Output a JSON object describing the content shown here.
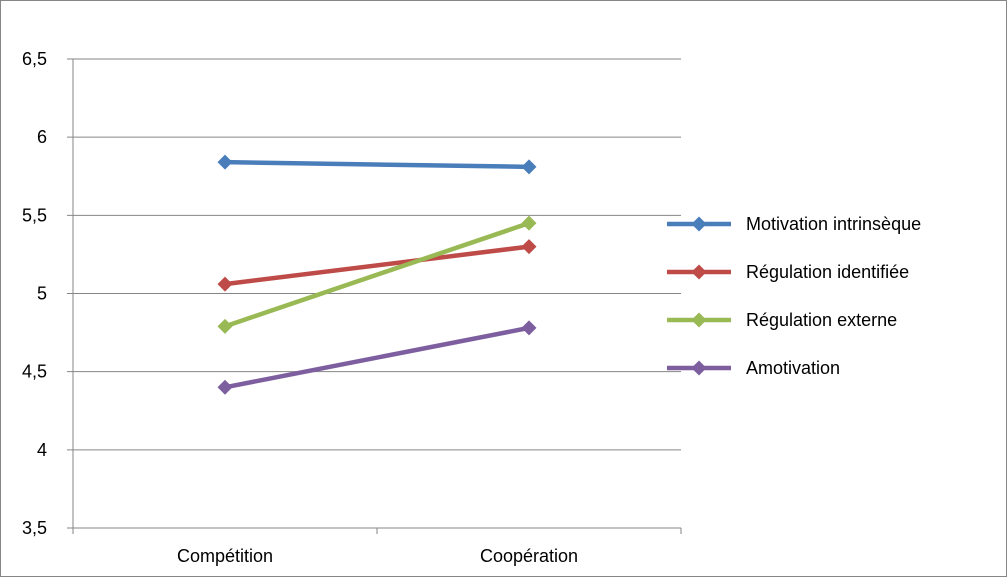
{
  "chart_data": {
    "type": "line",
    "categories": [
      "Compétition",
      "Coopération"
    ],
    "ylim": [
      3.5,
      6.5
    ],
    "yticks": [
      "3,5",
      "4",
      "4,5",
      "5",
      "5,5",
      "6",
      "6,5"
    ],
    "ytick_values": [
      3.5,
      4,
      4.5,
      5,
      5.5,
      6,
      6.5
    ],
    "grid": true,
    "legend_position": "right",
    "marker": "diamond",
    "series": [
      {
        "name": "Motivation intrinsèque",
        "values": [
          5.84,
          5.81
        ],
        "color": "#4A7EBB"
      },
      {
        "name": "Régulation identifiée",
        "values": [
          5.06,
          5.3
        ],
        "color": "#BE4B48"
      },
      {
        "name": "Régulation externe",
        "values": [
          4.79,
          5.45
        ],
        "color": "#98B954"
      },
      {
        "name": "Amotivation",
        "values": [
          4.4,
          4.78
        ],
        "color": "#7D5FA0"
      }
    ]
  }
}
